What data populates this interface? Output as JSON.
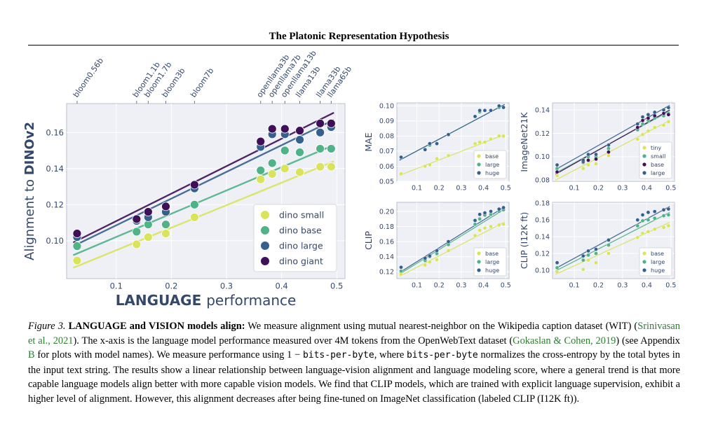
{
  "header": {
    "title": "The Platonic Representation Hypothesis"
  },
  "colors": {
    "small": "#d9e35c",
    "base": "#4fb387",
    "large": "#35608d",
    "giant": "#3f0f57",
    "tiny": "#d9e35c",
    "huge": "#35608d"
  },
  "chart_data": [
    {
      "type": "scatter",
      "id": "main",
      "xlabel_bold": "LANGUAGE",
      "xlabel_rest": "performance",
      "ylabel_prefix": "Alignment to",
      "ylabel_bold": "DINOv2",
      "xlim": [
        0.01,
        0.515
      ],
      "ylim": [
        0.079,
        0.176
      ],
      "xticks": [
        "0.1",
        "0.2",
        "0.3",
        "0.4",
        "0.5"
      ],
      "yticks": [
        "0.10",
        "0.12",
        "0.14",
        "0.16"
      ],
      "top_labels": [
        {
          "x": 0.029,
          "label": "bloom0.56b"
        },
        {
          "x": 0.137,
          "label": "bloom1.1b"
        },
        {
          "x": 0.158,
          "label": "bloom1.7b"
        },
        {
          "x": 0.19,
          "label": "bloom3b"
        },
        {
          "x": 0.242,
          "label": "bloom7b"
        },
        {
          "x": 0.362,
          "label": "openllama3b"
        },
        {
          "x": 0.383,
          "label": "openllama7b"
        },
        {
          "x": 0.406,
          "label": "openllama13b"
        },
        {
          "x": 0.433,
          "label": "llama13b"
        },
        {
          "x": 0.47,
          "label": "llama33b"
        },
        {
          "x": 0.49,
          "label": "llama65b"
        }
      ],
      "x": [
        0.029,
        0.137,
        0.158,
        0.19,
        0.242,
        0.362,
        0.383,
        0.406,
        0.433,
        0.47,
        0.49
      ],
      "series": [
        {
          "name": "dino small",
          "key": "small",
          "values": [
            0.089,
            0.098,
            0.102,
            0.104,
            0.113,
            0.134,
            0.137,
            0.14,
            0.138,
            0.141,
            0.141
          ]
        },
        {
          "name": "dino base",
          "key": "base",
          "values": [
            0.097,
            0.105,
            0.109,
            0.109,
            0.12,
            0.139,
            0.143,
            0.15,
            0.149,
            0.151,
            0.151
          ]
        },
        {
          "name": "dino large",
          "key": "large",
          "values": [
            0.102,
            0.111,
            0.113,
            0.116,
            0.129,
            0.152,
            0.159,
            0.159,
            0.156,
            0.16,
            0.163
          ]
        },
        {
          "name": "dino giant",
          "key": "giant",
          "values": [
            0.104,
            0.112,
            0.116,
            0.119,
            0.131,
            0.155,
            0.162,
            0.162,
            0.161,
            0.165,
            0.165
          ]
        }
      ],
      "fits": [
        {
          "key": "small",
          "y0": 0.085,
          "y1": 0.144
        },
        {
          "key": "base",
          "y0": 0.092,
          "y1": 0.153
        },
        {
          "key": "large",
          "y0": 0.097,
          "y1": 0.167
        },
        {
          "key": "giant",
          "y0": 0.099,
          "y1": 0.171
        }
      ],
      "legend_position": "lower-right"
    },
    {
      "type": "scatter",
      "id": "mae",
      "ylabel": "MAE",
      "xlim": [
        0.01,
        0.515
      ],
      "ylim": [
        0.05,
        0.102
      ],
      "xticks": [
        "0.1",
        "0.2",
        "0.3",
        "0.4",
        "0.5"
      ],
      "yticks": [
        "0.05",
        "0.06",
        "0.07",
        "0.08",
        "0.09",
        "0.10"
      ],
      "x": [
        0.029,
        0.137,
        0.158,
        0.19,
        0.242,
        0.362,
        0.383,
        0.406,
        0.433,
        0.47,
        0.49
      ],
      "series": [
        {
          "name": "base",
          "key": "small",
          "values": [
            0.055,
            0.06,
            0.061,
            0.065,
            0.067,
            0.075,
            0.076,
            0.076,
            0.078,
            0.08,
            0.08
          ]
        },
        {
          "name": "large",
          "key": "base",
          "values": [
            0.066,
            0.071,
            0.074,
            0.075,
            0.081,
            0.093,
            0.096,
            0.097,
            0.097,
            0.099,
            0.099
          ]
        },
        {
          "name": "huge",
          "key": "large",
          "values": [
            0.066,
            0.071,
            0.075,
            0.075,
            0.081,
            0.093,
            0.097,
            0.097,
            0.097,
            0.1,
            0.099
          ]
        }
      ],
      "fits": [
        {
          "key": "small",
          "y0": 0.054,
          "y1": 0.081
        },
        {
          "key": "base",
          "y0": 0.064,
          "y1": 0.101
        },
        {
          "key": "large",
          "y0": 0.064,
          "y1": 0.101
        }
      ],
      "legend_position": "lower-right"
    },
    {
      "type": "scatter",
      "id": "in21k",
      "ylabel": "ImageNet21K",
      "xlim": [
        0.01,
        0.515
      ],
      "ylim": [
        0.079,
        0.146
      ],
      "xticks": [
        "0.1",
        "0.2",
        "0.3",
        "0.4",
        "0.5"
      ],
      "yticks": [
        "0.08",
        "0.10",
        "0.12",
        "0.14"
      ],
      "x": [
        0.029,
        0.137,
        0.158,
        0.19,
        0.242,
        0.362,
        0.383,
        0.406,
        0.433,
        0.47,
        0.49
      ],
      "series": [
        {
          "name": "tiny",
          "key": "small",
          "values": [
            0.084,
            0.09,
            0.093,
            0.094,
            0.101,
            0.115,
            0.119,
            0.122,
            0.125,
            0.127,
            0.13
          ]
        },
        {
          "name": "small",
          "key": "base",
          "values": [
            0.09,
            0.095,
            0.1,
            0.1,
            0.107,
            0.123,
            0.128,
            0.131,
            0.133,
            0.135,
            0.137
          ]
        },
        {
          "name": "base",
          "key": "giant",
          "values": [
            0.087,
            0.096,
            0.097,
            0.098,
            0.104,
            0.125,
            0.131,
            0.133,
            0.135,
            0.137,
            0.136
          ]
        },
        {
          "name": "large",
          "key": "large",
          "values": [
            0.093,
            0.097,
            0.102,
            0.102,
            0.11,
            0.128,
            0.134,
            0.136,
            0.138,
            0.14,
            0.142
          ]
        }
      ],
      "fits": [
        {
          "key": "small",
          "y0": 0.08,
          "y1": 0.131
        },
        {
          "key": "base",
          "y0": 0.086,
          "y1": 0.139
        },
        {
          "key": "giant",
          "y0": 0.085,
          "y1": 0.14
        },
        {
          "key": "large",
          "y0": 0.089,
          "y1": 0.144
        }
      ],
      "legend_position": "lower-right"
    },
    {
      "type": "scatter",
      "id": "clip",
      "ylabel": "CLIP",
      "xlim": [
        0.01,
        0.515
      ],
      "ylim": [
        0.111,
        0.212
      ],
      "xticks": [
        "0.1",
        "0.2",
        "0.3",
        "0.4",
        "0.5"
      ],
      "yticks": [
        "0.12",
        "0.14",
        "0.16",
        "0.18",
        "0.20"
      ],
      "x": [
        0.029,
        0.137,
        0.158,
        0.19,
        0.242,
        0.362,
        0.383,
        0.406,
        0.433,
        0.47,
        0.49
      ],
      "series": [
        {
          "name": "base",
          "key": "small",
          "values": [
            0.117,
            0.129,
            0.133,
            0.136,
            0.148,
            0.168,
            0.175,
            0.178,
            0.18,
            0.182,
            0.183
          ]
        },
        {
          "name": "large",
          "key": "base",
          "values": [
            0.121,
            0.135,
            0.14,
            0.144,
            0.156,
            0.183,
            0.19,
            0.195,
            0.196,
            0.2,
            0.202
          ]
        },
        {
          "name": "huge",
          "key": "large",
          "values": [
            0.126,
            0.138,
            0.141,
            0.148,
            0.16,
            0.188,
            0.196,
            0.198,
            0.2,
            0.203,
            0.205
          ]
        }
      ],
      "fits": [
        {
          "key": "small",
          "y0": 0.114,
          "y1": 0.186
        },
        {
          "key": "base",
          "y0": 0.117,
          "y1": 0.203
        },
        {
          "key": "large",
          "y0": 0.119,
          "y1": 0.206
        }
      ],
      "legend_position": "lower-right"
    },
    {
      "type": "scatter",
      "id": "clip_i12k",
      "ylabel": "CLIP (I12K ft)",
      "xlim": [
        0.01,
        0.515
      ],
      "ylim": [
        0.09,
        0.181
      ],
      "xticks": [
        "0.1",
        "0.2",
        "0.3",
        "0.4",
        "0.5"
      ],
      "yticks": [
        "0.10",
        "0.12",
        "0.14",
        "0.16",
        "0.18"
      ],
      "x": [
        0.029,
        0.137,
        0.158,
        0.19,
        0.242,
        0.362,
        0.383,
        0.406,
        0.433,
        0.47,
        0.49
      ],
      "series": [
        {
          "name": "base",
          "key": "small",
          "values": [
            0.098,
            0.101,
            0.112,
            0.109,
            0.12,
            0.139,
            0.144,
            0.146,
            0.149,
            0.151,
            0.153
          ]
        },
        {
          "name": "large",
          "key": "base",
          "values": [
            0.103,
            0.112,
            0.118,
            0.12,
            0.13,
            0.153,
            0.159,
            0.16,
            0.162,
            0.165,
            0.166
          ]
        },
        {
          "name": "huge",
          "key": "large",
          "values": [
            0.109,
            0.117,
            0.123,
            0.125,
            0.136,
            0.16,
            0.166,
            0.169,
            0.17,
            0.172,
            0.173
          ]
        }
      ],
      "fits": [
        {
          "key": "small",
          "y0": 0.095,
          "y1": 0.157
        },
        {
          "key": "base",
          "y0": 0.099,
          "y1": 0.169
        },
        {
          "key": "large",
          "y0": 0.102,
          "y1": 0.176
        }
      ],
      "legend_position": "lower-right"
    }
  ],
  "caption": {
    "label": "Figure 3.",
    "title": "LANGUAGE and VISION models align:",
    "t1": " We measure alignment using mutual nearest-neighbor on the Wikipedia caption dataset (WIT) (",
    "cite1": "Srinivasan et al., 2021",
    "t2": "). The x-axis is the language model performance measured over 4M tokens from the OpenWebText dataset (",
    "cite2": "Gokaslan & Cohen, 2019",
    "t3": ") (see Appendix ",
    "cite3": "B",
    "t4": " for plots with model names). We measure performance using 1 − ",
    "code1": "bits-per-byte",
    "t5": ", where ",
    "code2": "bits-per-byte",
    "t6": " normalizes the cross-entropy by the total bytes in the input text string. The results show a linear relationship between language-vision alignment and language modeling score, where a general trend is that more capable language models align better with more capable vision models. We find that CLIP models, which are trained with explicit language supervision, exhibit a higher level of alignment. However, this alignment decreases after being fine-tuned on ImageNet classification (labeled CLIP (I12K ft))."
  }
}
